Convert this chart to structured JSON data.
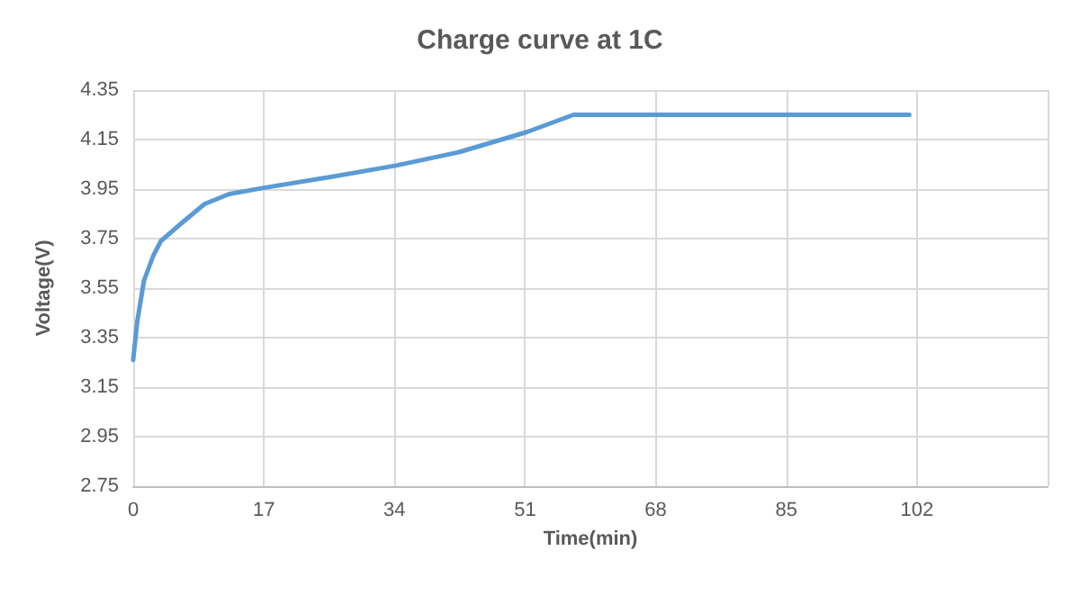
{
  "chart_data": {
    "type": "line",
    "title": "Charge curve at 1C",
    "xlabel": "Time(min)",
    "ylabel": "Voltage(V)",
    "series": [
      {
        "color": "#5b9bd5",
        "x": [
          0,
          0.5,
          1.4,
          2.6,
          3.6,
          6.2,
          9.3,
          12.5,
          17,
          25.9,
          34.2,
          42.5,
          51.2,
          57.3,
          101
        ],
        "values": [
          3.26,
          3.41,
          3.58,
          3.68,
          3.74,
          3.81,
          3.89,
          3.93,
          3.955,
          4.0,
          4.045,
          4.1,
          4.18,
          4.25,
          4.25
        ]
      }
    ],
    "xlim": [
      0,
      119
    ],
    "xticks": [
      0,
      17,
      34,
      51,
      68,
      85,
      102,
      {
        "value": 119,
        "label": null
      }
    ],
    "ylim": [
      2.75,
      4.35
    ],
    "yticks": [
      2.75,
      2.95,
      3.15,
      3.35,
      3.55,
      3.75,
      3.95,
      4.15,
      4.35
    ],
    "grid": true,
    "marker": "none",
    "line_style": "solid"
  }
}
